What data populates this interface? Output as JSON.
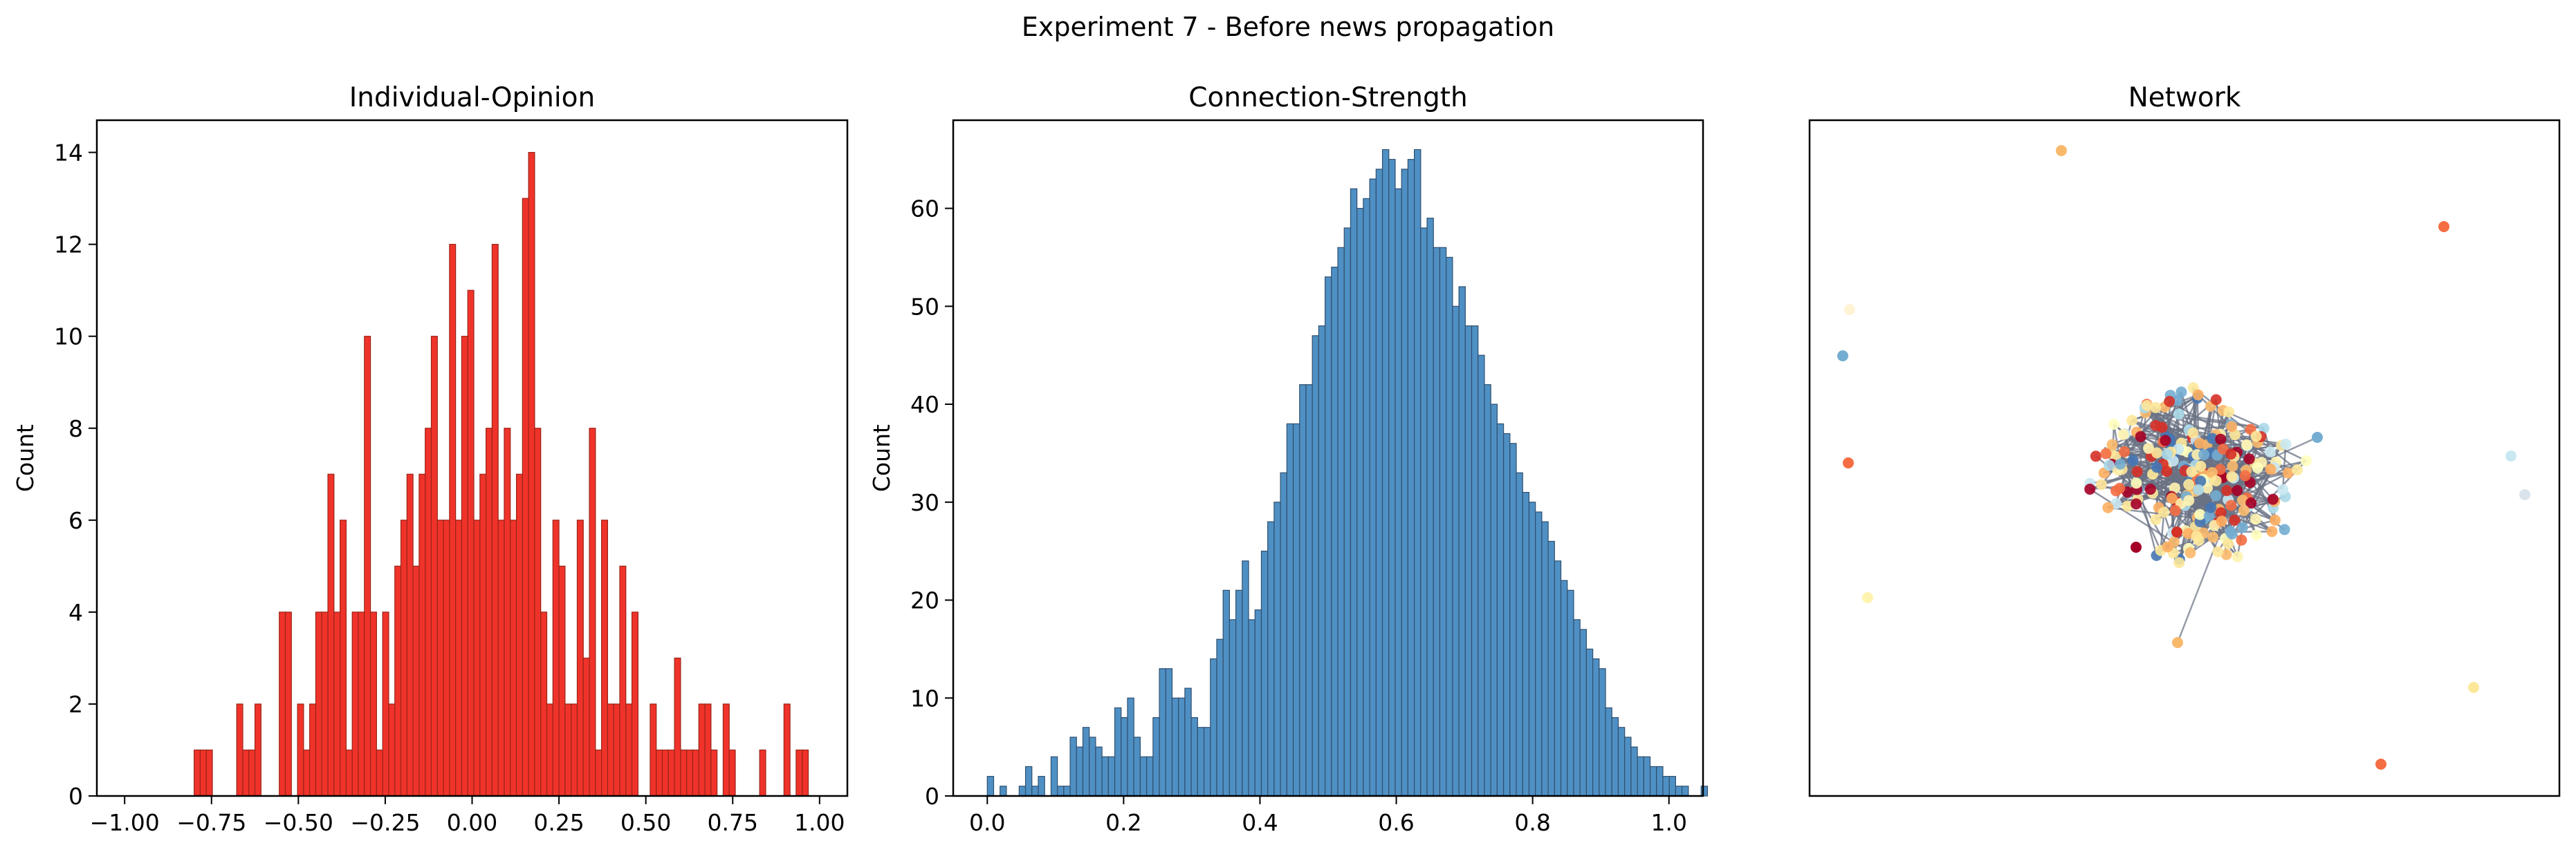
{
  "figure_title": "Experiment 7 - Before news propagation",
  "colors": {
    "opinion_fill": "#f0332a",
    "opinion_edge": "#9a2418",
    "strength_fill": "#4f90c4",
    "strength_edge": "#2f4f6f",
    "axis": "#000000",
    "network_edge": "#6a7283"
  },
  "chart_data": [
    {
      "type": "bar",
      "title": "Individual-Opinion",
      "xlabel": "",
      "ylabel": "Count",
      "xlim": [
        -1.08,
        1.08
      ],
      "ylim": [
        0,
        14.7
      ],
      "xticks": [
        -1.0,
        -0.75,
        -0.5,
        -0.25,
        0.0,
        0.25,
        0.5,
        0.75,
        1.0
      ],
      "xtick_labels": [
        "−1.00",
        "−0.75",
        "−0.50",
        "−0.25",
        "0.00",
        "0.25",
        "0.50",
        "0.75",
        "1.00"
      ],
      "yticks": [
        0,
        2,
        4,
        6,
        8,
        10,
        12,
        14
      ],
      "ytick_labels": [
        "0",
        "2",
        "4",
        "6",
        "8",
        "10",
        "12",
        "14"
      ],
      "bin_start": -0.8,
      "bin_width": 0.0175,
      "values": [
        1,
        1,
        1,
        0,
        0,
        0,
        0,
        2,
        1,
        1,
        2,
        0,
        0,
        0,
        4,
        4,
        0,
        2,
        1,
        2,
        4,
        4,
        7,
        4,
        6,
        1,
        4,
        4,
        10,
        4,
        1,
        4,
        2,
        5,
        6,
        7,
        5,
        7,
        8,
        10,
        6,
        6,
        12,
        6,
        10,
        11,
        6,
        7,
        8,
        12,
        6,
        8,
        6,
        7,
        13,
        14,
        8,
        4,
        2,
        6,
        5,
        2,
        2,
        6,
        3,
        8,
        1,
        6,
        2,
        2,
        5,
        2,
        4,
        0,
        0,
        2,
        1,
        1,
        1,
        3,
        1,
        1,
        1,
        2,
        2,
        1,
        0,
        2,
        1,
        0,
        0,
        0,
        0,
        1,
        0,
        0,
        0,
        2,
        0,
        1,
        1
      ]
    },
    {
      "type": "bar",
      "title": "Connection-Strength",
      "xlabel": "",
      "ylabel": "Count",
      "xlim": [
        -0.05,
        1.05
      ],
      "ylim": [
        0,
        69
      ],
      "xticks": [
        0.0,
        0.2,
        0.4,
        0.6,
        0.8,
        1.0
      ],
      "xtick_labels": [
        "0.0",
        "0.2",
        "0.4",
        "0.6",
        "0.8",
        "1.0"
      ],
      "yticks": [
        0,
        10,
        20,
        30,
        40,
        50,
        60
      ],
      "ytick_labels": [
        "0",
        "10",
        "20",
        "30",
        "40",
        "50",
        "60"
      ],
      "bin_start": 0.0,
      "bin_width": 0.00935,
      "values": [
        2,
        0,
        1,
        0,
        0,
        1,
        3,
        1,
        2,
        0,
        4,
        1,
        1,
        6,
        5,
        7,
        6,
        5,
        4,
        4,
        9,
        8,
        10,
        6,
        4,
        4,
        8,
        13,
        13,
        10,
        10,
        11,
        8,
        7,
        7,
        14,
        16,
        21,
        18,
        21,
        24,
        18,
        19,
        25,
        28,
        30,
        33,
        38,
        38,
        42,
        42,
        47,
        48,
        53,
        54,
        56,
        58,
        62,
        60,
        61,
        63,
        64,
        66,
        65,
        62,
        64,
        65,
        66,
        58,
        59,
        56,
        56,
        55,
        50,
        52,
        48,
        48,
        45,
        42,
        40,
        38,
        37,
        36,
        33,
        31,
        30,
        29,
        28,
        26,
        24,
        22,
        21,
        18,
        17,
        15,
        14,
        13,
        9,
        8,
        7,
        6,
        5,
        4,
        4,
        3,
        3,
        2,
        2,
        1,
        1,
        0,
        0,
        1
      ]
    },
    {
      "type": "network",
      "title": "Network"
    }
  ]
}
